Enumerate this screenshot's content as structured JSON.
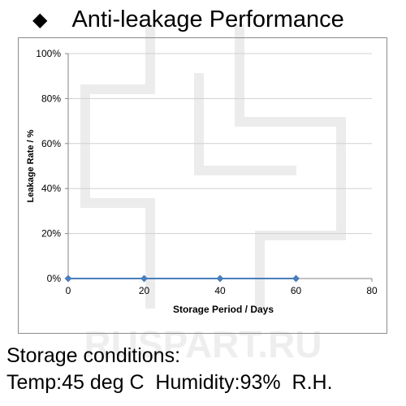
{
  "page": {
    "title_bullet": "◆",
    "title": "Anti-leakage Performance",
    "conditions_line1": "Storage conditions:",
    "conditions_line2": "Temp:45 deg C  Humidity:93%  R.H.",
    "watermark_text": "RUSPART.RU"
  },
  "colors": {
    "series": "#4a7ebb",
    "grid": "#d0d0d0",
    "axis": "#868686",
    "watermark": "#e6e6e6"
  },
  "chart_data": {
    "type": "line",
    "title": "",
    "xlabel": "Storage Period / Days",
    "ylabel": "Leakage Rate / %",
    "xlim": [
      0,
      80
    ],
    "ylim": [
      0,
      100
    ],
    "x_ticks": [
      0,
      20,
      40,
      60,
      80
    ],
    "y_ticks": [
      0,
      20,
      40,
      60,
      80,
      100
    ],
    "x_tick_labels": [
      "0",
      "20",
      "40",
      "60",
      "80"
    ],
    "y_tick_labels": [
      "0%",
      "20%",
      "40%",
      "60%",
      "80%",
      "100%"
    ],
    "grid": "horizontal",
    "legend": "none",
    "series": [
      {
        "x": [
          0,
          20,
          40,
          60
        ],
        "values": [
          0,
          0,
          0,
          0
        ],
        "marker": "diamond"
      }
    ]
  }
}
